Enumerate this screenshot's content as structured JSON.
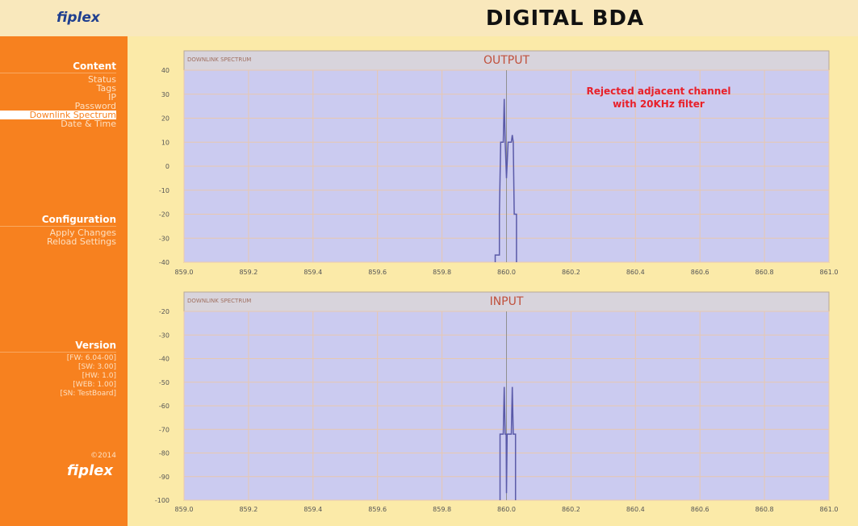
{
  "header": {
    "logo": "fiplex",
    "title": "DIGITAL BDA"
  },
  "sidebar": {
    "sections": [
      {
        "title": "Content",
        "items": [
          "Status",
          "Tags",
          "IP",
          "Password",
          "Downlink Spectrum",
          "Date & Time"
        ],
        "active": 4
      },
      {
        "title": "Configuration",
        "items": [
          "Apply Changes",
          "Reload Settings"
        ]
      },
      {
        "title": "Version",
        "items": [
          "[FW: 6.04-00]",
          "[SW: 3.00]",
          "[HW: 1.0]",
          "[WEB: 1.00]",
          "[SN: TestBoard]"
        ]
      }
    ],
    "copyright": "©2014",
    "logo": "fiplex"
  },
  "chart_data": [
    {
      "type": "line",
      "header": "DOWNLINK SPECTRUM",
      "title": "OUTPUT",
      "x": [
        859.965,
        859.965,
        859.978,
        859.978,
        859.982,
        859.99,
        859.993,
        859.996,
        860.0,
        860.005,
        860.015,
        860.018,
        860.021,
        860.024,
        860.027,
        860.031,
        860.031
      ],
      "series": [
        {
          "color": "#5a5aa8",
          "values": [
            -40,
            -37,
            -37,
            -20,
            10,
            10,
            28,
            10,
            -5,
            10,
            10,
            13,
            10,
            -20,
            -20,
            -20,
            -40
          ]
        }
      ],
      "xlim": [
        859,
        861
      ],
      "ylim": [
        -40,
        40
      ],
      "xticks": [
        {
          "value": 859,
          "label": "859.0"
        },
        859.2,
        859.4,
        859.6,
        859.8,
        {
          "value": 860,
          "label": "860.0"
        },
        860.2,
        860.4,
        860.6,
        860.8,
        {
          "value": 861,
          "label": "861.0"
        }
      ],
      "yticks": [
        40,
        30,
        20,
        10,
        0,
        -10,
        -20,
        -30,
        -40
      ],
      "marker_x": 860,
      "grid": true,
      "annotation": [
        "Rejected adjacent channel",
        "with 20KHz filter"
      ]
    },
    {
      "type": "line",
      "header": "DOWNLINK SPECTRUM",
      "title": "INPUT",
      "x": [
        859.98,
        859.98,
        859.99,
        859.993,
        859.996,
        859.999,
        860.0,
        860.002,
        860.015,
        860.018,
        860.021,
        860.024,
        860.028,
        860.028
      ],
      "series": [
        {
          "color": "#5a5aa8",
          "values": [
            -100,
            -72,
            -72,
            -52,
            -72,
            -72,
            -97,
            -72,
            -72,
            -52,
            -72,
            -72,
            -72,
            -100
          ]
        }
      ],
      "xlim": [
        859,
        861
      ],
      "ylim": [
        -100,
        -20
      ],
      "xticks": [
        {
          "value": 859,
          "label": "859.0"
        },
        859.2,
        859.4,
        859.6,
        859.8,
        {
          "value": 860,
          "label": "860.0"
        },
        860.2,
        860.4,
        860.6,
        860.8,
        {
          "value": 861,
          "label": "861.0"
        }
      ],
      "yticks": [
        -20,
        -30,
        -40,
        -50,
        -60,
        -70,
        -80,
        -90,
        -100
      ],
      "marker_x": 860,
      "grid": true
    }
  ]
}
